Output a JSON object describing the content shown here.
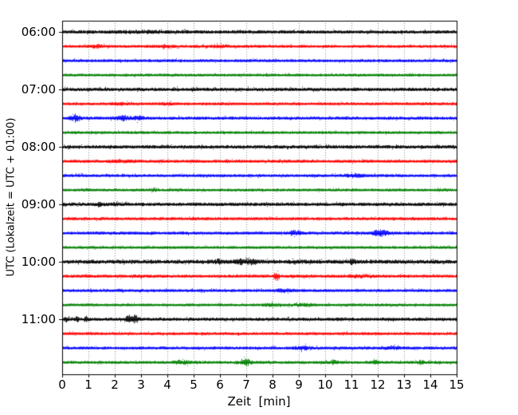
{
  "chart_data": {
    "type": "line",
    "subtype": "helicorder-seismogram",
    "title": "",
    "xlabel": "Zeit  [min]",
    "ylabel": "UTC (Lokalzeit = UTC + 01:00)",
    "xlim": [
      0,
      15
    ],
    "minutes_per_trace": 15,
    "x_ticks": [
      "0",
      "1",
      "2",
      "3",
      "4",
      "5",
      "6",
      "7",
      "8",
      "9",
      "10",
      "11",
      "12",
      "13",
      "14",
      "15"
    ],
    "y_tick_labels": [
      "06:00",
      "07:00",
      "08:00",
      "09:00",
      "10:00",
      "11:00"
    ],
    "grid": {
      "vertical": true,
      "horizontal": false,
      "style": "dotted",
      "color": "#8a8a8a"
    },
    "axis_color": "#000000",
    "background_color": "#ffffff",
    "trace_color_cycle": [
      "#000000",
      "#ff0000",
      "#0000ff",
      "#008000"
    ],
    "traces": [
      {
        "start": "06:00",
        "color": "#000000",
        "base_amp": 2.0,
        "events": [
          {
            "t": 3.0,
            "a": 0.7,
            "w": 0.6
          }
        ]
      },
      {
        "start": "06:15",
        "color": "#ff0000",
        "base_amp": 1.7,
        "events": [
          {
            "t": 1.3,
            "a": 1.2,
            "w": 0.15
          },
          {
            "t": 3.9,
            "a": 1.0,
            "w": 0.2
          },
          {
            "t": 5.9,
            "a": 0.9,
            "w": 0.25
          }
        ]
      },
      {
        "start": "06:30",
        "color": "#0000ff",
        "base_amp": 1.7,
        "events": []
      },
      {
        "start": "06:45",
        "color": "#008000",
        "base_amp": 1.6,
        "events": []
      },
      {
        "start": "07:00",
        "color": "#000000",
        "base_amp": 2.0,
        "events": []
      },
      {
        "start": "07:15",
        "color": "#ff0000",
        "base_amp": 1.7,
        "events": [
          {
            "t": 2.2,
            "a": 1.0,
            "w": 0.2
          },
          {
            "t": 3.9,
            "a": 0.8,
            "w": 0.2
          }
        ]
      },
      {
        "start": "07:30",
        "color": "#0000ff",
        "base_amp": 1.8,
        "events": [
          {
            "t": 0.5,
            "a": 3.5,
            "w": 0.12
          },
          {
            "t": 2.3,
            "a": 2.2,
            "w": 0.18
          },
          {
            "t": 2.9,
            "a": 2.0,
            "w": 0.12
          }
        ]
      },
      {
        "start": "07:45",
        "color": "#008000",
        "base_amp": 1.6,
        "events": []
      },
      {
        "start": "08:00",
        "color": "#000000",
        "base_amp": 2.0,
        "events": []
      },
      {
        "start": "08:15",
        "color": "#ff0000",
        "base_amp": 1.8,
        "events": [
          {
            "t": 2.3,
            "a": 1.0,
            "w": 0.3
          }
        ]
      },
      {
        "start": "08:30",
        "color": "#0000ff",
        "base_amp": 1.7,
        "events": [
          {
            "t": 11.1,
            "a": 1.5,
            "w": 0.25
          }
        ]
      },
      {
        "start": "08:45",
        "color": "#008000",
        "base_amp": 1.6,
        "events": [
          {
            "t": 0.85,
            "a": 1.0,
            "w": 0.1
          },
          {
            "t": 3.5,
            "a": 0.9,
            "w": 0.12
          }
        ]
      },
      {
        "start": "09:00",
        "color": "#000000",
        "base_amp": 2.0,
        "events": [
          {
            "t": 1.4,
            "a": 1.2,
            "w": 0.12
          },
          {
            "t": 2.0,
            "a": 1.2,
            "w": 0.1
          }
        ]
      },
      {
        "start": "09:15",
        "color": "#ff0000",
        "base_amp": 1.8,
        "events": []
      },
      {
        "start": "09:30",
        "color": "#0000ff",
        "base_amp": 1.8,
        "events": [
          {
            "t": 8.85,
            "a": 2.2,
            "w": 0.15
          },
          {
            "t": 12.1,
            "a": 2.6,
            "w": 0.2
          }
        ]
      },
      {
        "start": "09:45",
        "color": "#008000",
        "base_amp": 1.6,
        "events": []
      },
      {
        "start": "10:00",
        "color": "#000000",
        "base_amp": 2.4,
        "events": [
          {
            "t": 5.9,
            "a": 1.5,
            "w": 0.1
          },
          {
            "t": 6.8,
            "a": 2.2,
            "w": 0.12
          },
          {
            "t": 7.2,
            "a": 2.2,
            "w": 0.12
          },
          {
            "t": 11.0,
            "a": 1.5,
            "w": 0.1
          }
        ]
      },
      {
        "start": "10:15",
        "color": "#ff0000",
        "base_amp": 1.8,
        "events": [
          {
            "t": 8.15,
            "a": 3.8,
            "w": 0.08
          },
          {
            "t": 11.3,
            "a": 1.0,
            "w": 0.35
          }
        ]
      },
      {
        "start": "10:30",
        "color": "#0000ff",
        "base_amp": 1.7,
        "events": [
          {
            "t": 8.4,
            "a": 1.3,
            "w": 0.2
          }
        ]
      },
      {
        "start": "10:45",
        "color": "#008000",
        "base_amp": 1.6,
        "events": [
          {
            "t": 8.0,
            "a": 1.1,
            "w": 0.25
          },
          {
            "t": 9.2,
            "a": 1.4,
            "w": 0.2
          }
        ]
      },
      {
        "start": "11:00",
        "color": "#000000",
        "base_amp": 1.9,
        "events": [
          {
            "t": 0.12,
            "a": 2.2,
            "w": 0.06
          },
          {
            "t": 0.55,
            "a": 2.2,
            "w": 0.06
          },
          {
            "t": 0.9,
            "a": 2.2,
            "w": 0.06
          },
          {
            "t": 2.55,
            "a": 3.2,
            "w": 0.1
          },
          {
            "t": 2.8,
            "a": 3.2,
            "w": 0.1
          }
        ]
      },
      {
        "start": "11:15",
        "color": "#ff0000",
        "base_amp": 1.7,
        "events": []
      },
      {
        "start": "11:30",
        "color": "#0000ff",
        "base_amp": 1.7,
        "events": [
          {
            "t": 9.15,
            "a": 1.8,
            "w": 0.2
          },
          {
            "t": 12.6,
            "a": 1.2,
            "w": 0.2
          }
        ]
      },
      {
        "start": "11:45",
        "color": "#008000",
        "base_amp": 1.7,
        "events": [
          {
            "t": 4.4,
            "a": 1.8,
            "w": 0.08
          },
          {
            "t": 4.7,
            "a": 2.0,
            "w": 0.08
          },
          {
            "t": 6.85,
            "a": 2.8,
            "w": 0.1
          },
          {
            "t": 7.05,
            "a": 3.0,
            "w": 0.09
          },
          {
            "t": 10.3,
            "a": 1.7,
            "w": 0.1
          },
          {
            "t": 11.9,
            "a": 1.6,
            "w": 0.1
          },
          {
            "t": 13.6,
            "a": 1.2,
            "w": 0.1
          }
        ]
      }
    ]
  }
}
